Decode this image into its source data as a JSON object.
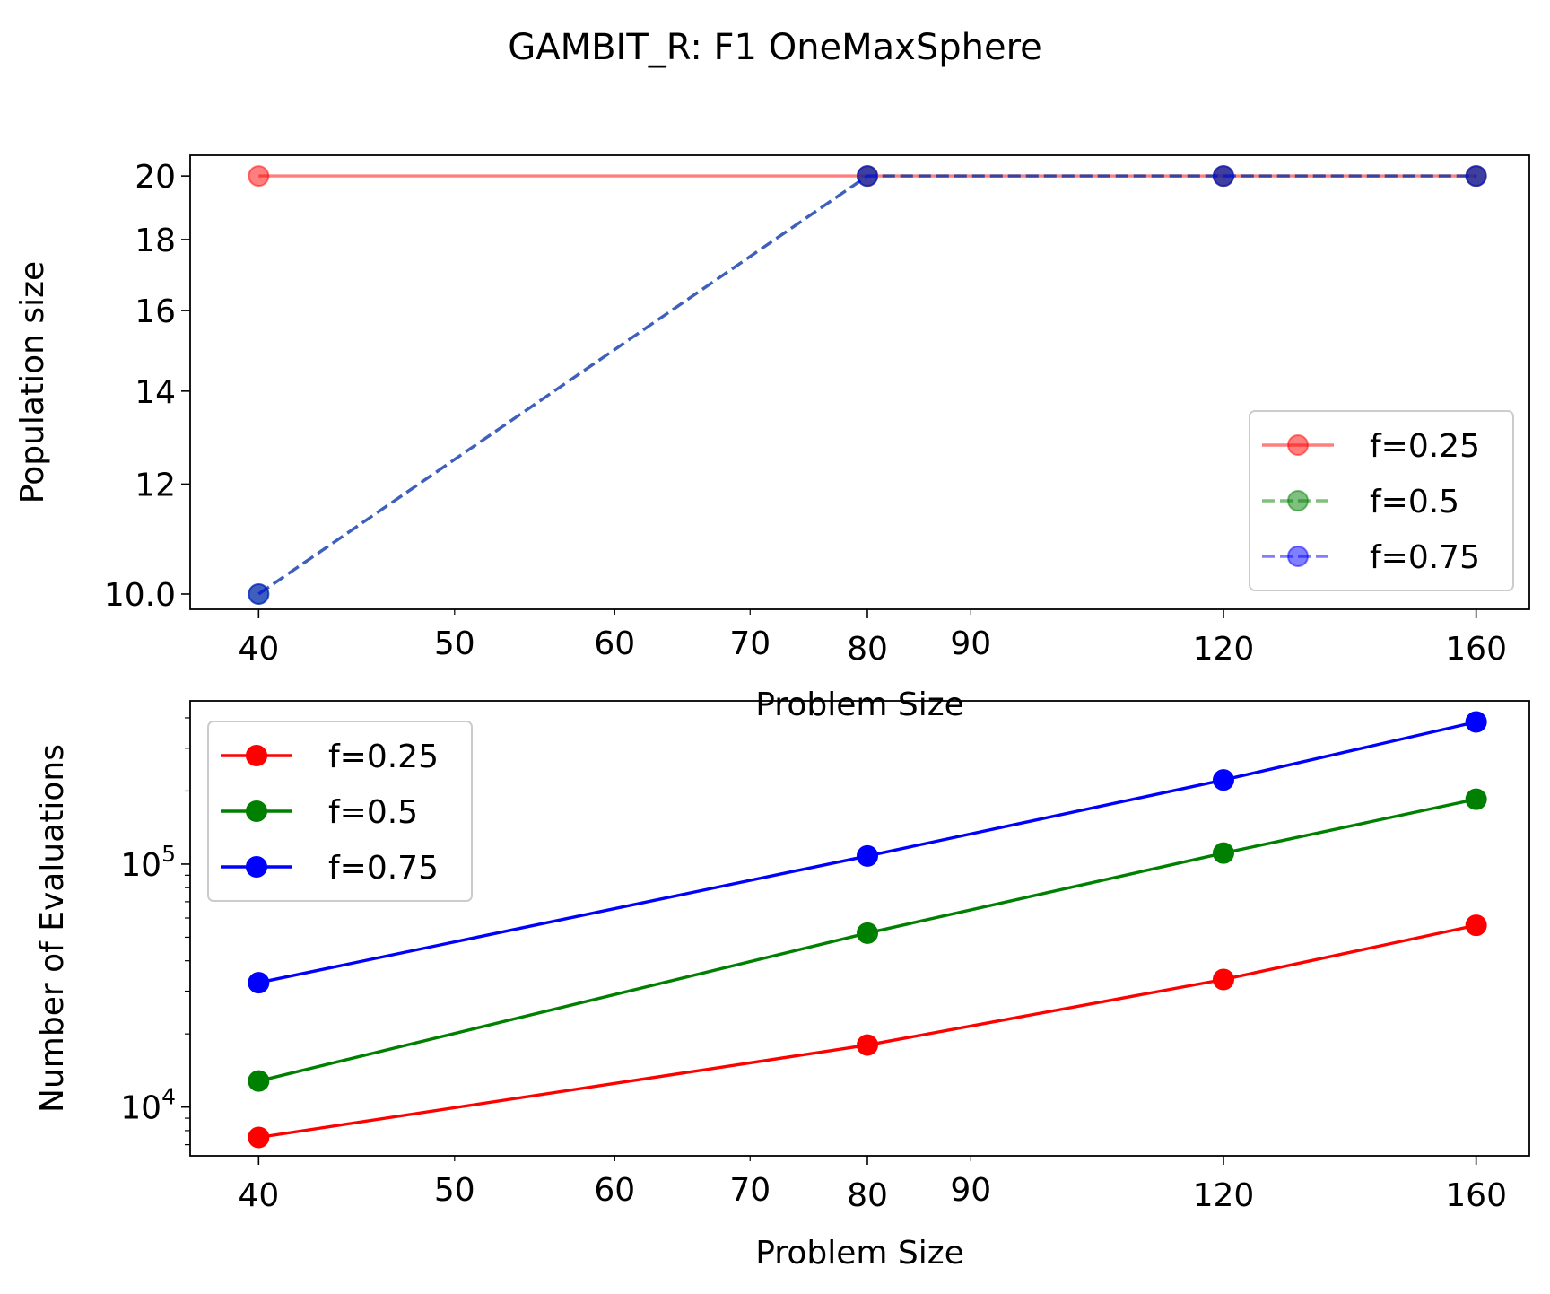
{
  "title": "GAMBIT_R: F1 OneMaxSphere",
  "chart_data": [
    {
      "type": "line",
      "ylabel": "Population size",
      "xlabel": "Problem Size",
      "x_scale": "log",
      "y_scale": "log",
      "xlim": [
        37,
        170
      ],
      "ylim": [
        9.75,
        20.7
      ],
      "x_ticks": [
        {
          "value": 40,
          "label": "40",
          "major": true
        },
        {
          "value": 50,
          "label": "50",
          "major": false
        },
        {
          "value": 60,
          "label": "60",
          "major": false
        },
        {
          "value": 70,
          "label": "70",
          "major": false
        },
        {
          "value": 80,
          "label": "80",
          "major": true
        },
        {
          "value": 90,
          "label": "90",
          "major": false
        },
        {
          "value": 120,
          "label": "120",
          "major": true
        },
        {
          "value": 160,
          "label": "160",
          "major": true
        }
      ],
      "y_ticks": [
        {
          "value": 10,
          "label": "10.0"
        },
        {
          "value": 12,
          "label": "12"
        },
        {
          "value": 14,
          "label": "14"
        },
        {
          "value": 16,
          "label": "16"
        },
        {
          "value": 18,
          "label": "18"
        },
        {
          "value": 20,
          "label": "20"
        }
      ],
      "x": [
        40,
        80,
        120,
        160
      ],
      "series": [
        {
          "name": "f=0.25",
          "values": [
            20,
            20,
            20,
            20
          ],
          "color": "#ff0000",
          "dash": "solid",
          "opacity": 0.5
        },
        {
          "name": "f=0.5",
          "values": [
            10,
            20,
            20,
            20
          ],
          "color": "#008000",
          "dash": "dashed",
          "opacity": 0.5
        },
        {
          "name": "f=0.75",
          "values": [
            10,
            20,
            20,
            20
          ],
          "color": "#0000ff",
          "dash": "dashed",
          "opacity": 0.5
        }
      ],
      "legend": "lower-right",
      "grid": false
    },
    {
      "type": "line",
      "ylabel": "Number of Evaluations",
      "xlabel": "Problem Size",
      "x_scale": "log",
      "y_scale": "log",
      "xlim": [
        37,
        170
      ],
      "ylim": [
        6300,
        470000
      ],
      "x_ticks": [
        {
          "value": 40,
          "label": "40",
          "major": true
        },
        {
          "value": 50,
          "label": "50",
          "major": false
        },
        {
          "value": 60,
          "label": "60",
          "major": false
        },
        {
          "value": 70,
          "label": "70",
          "major": false
        },
        {
          "value": 80,
          "label": "80",
          "major": true
        },
        {
          "value": 90,
          "label": "90",
          "major": false
        },
        {
          "value": 120,
          "label": "120",
          "major": true
        },
        {
          "value": 160,
          "label": "160",
          "major": true
        }
      ],
      "y_ticks": [
        {
          "value": 10000,
          "base": "10",
          "exp": "4"
        },
        {
          "value": 100000,
          "base": "10",
          "exp": "5"
        }
      ],
      "x": [
        40,
        80,
        120,
        160
      ],
      "series": [
        {
          "name": "f=0.25",
          "values": [
            7500,
            18000,
            33500,
            56000
          ],
          "color": "#ff0000",
          "dash": "solid",
          "opacity": 1
        },
        {
          "name": "f=0.5",
          "values": [
            12800,
            52000,
            111000,
            185000
          ],
          "color": "#008000",
          "dash": "solid",
          "opacity": 1
        },
        {
          "name": "f=0.75",
          "values": [
            32500,
            108000,
            222000,
            385000
          ],
          "color": "#0000ff",
          "dash": "solid",
          "opacity": 1
        }
      ],
      "legend": "upper-left",
      "grid": false
    }
  ]
}
